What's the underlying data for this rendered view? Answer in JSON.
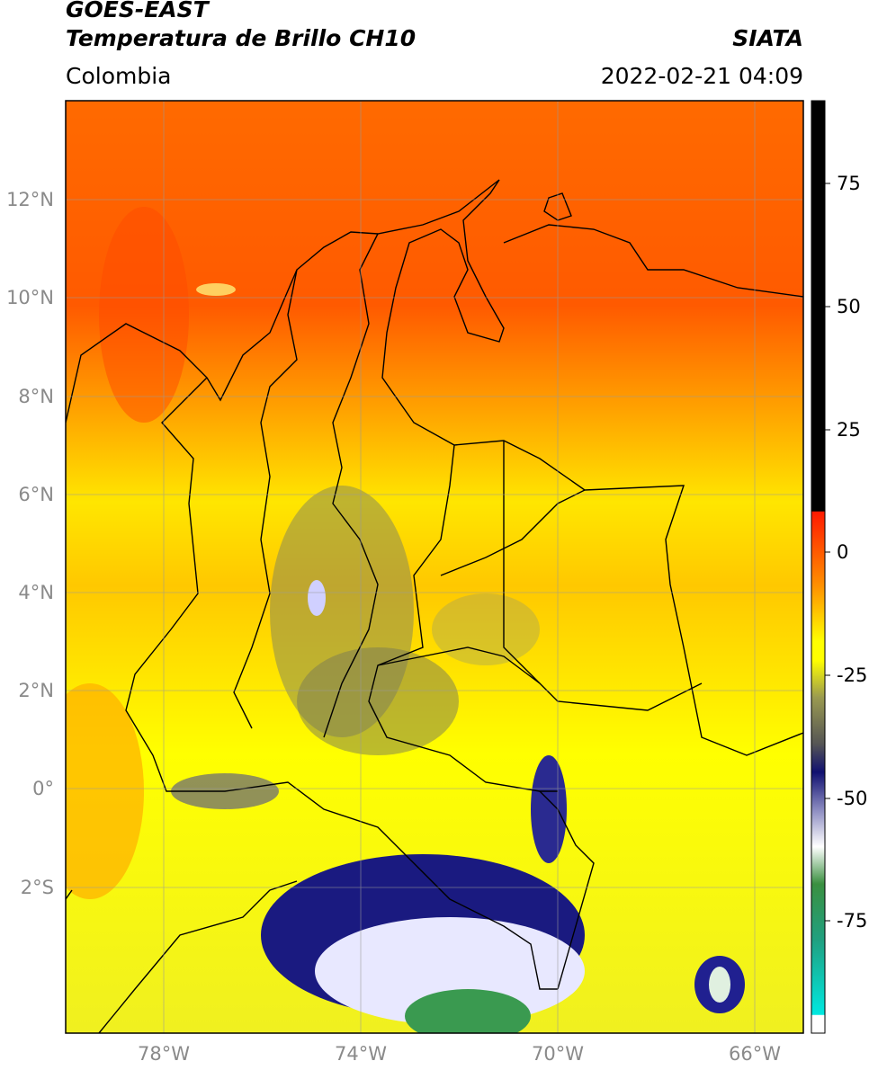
{
  "header": {
    "title_line1": "GOES-EAST",
    "title_line2": "Temperatura de Brillo CH10",
    "region": "Colombia",
    "organization": "SIATA",
    "datetime": "2022-02-21 04:09"
  },
  "map": {
    "lat_labels": [
      "12°N",
      "10°N",
      "8°N",
      "6°N",
      "4°N",
      "2°N",
      "0°",
      "2°S"
    ],
    "lon_labels": [
      "78°W",
      "74°W",
      "70°W",
      "66°W"
    ]
  },
  "colorbar": {
    "labels": [
      "75",
      "50",
      "25",
      "0",
      "-25",
      "-50",
      "-75"
    ],
    "colors": {
      "top": "#000000",
      "warm": "#ff2a00",
      "orange": "#ff9a00",
      "yellow": "#ffff00",
      "olive": "#7a7a40",
      "navy": "#141470",
      "white": "#ffffff",
      "green": "#2f8a3a",
      "cyan": "#00e0d0"
    }
  }
}
